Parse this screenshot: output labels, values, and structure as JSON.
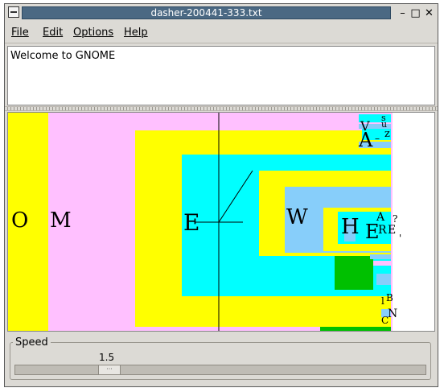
{
  "window": {
    "title": "dasher-200441-333.txt"
  },
  "window_controls": {
    "minimize": "–",
    "maximize": "□",
    "close": "✕"
  },
  "menu": [
    "File",
    "Edit",
    "Options",
    "Help"
  ],
  "editor": {
    "text": "Welcome to GNOME"
  },
  "dasher": {
    "letters": [
      "O",
      "M",
      "E",
      "W",
      "H",
      "E",
      "V",
      "A",
      "–",
      "s",
      "u",
      "z",
      "A",
      "R",
      "E",
      "?",
      "l",
      "B",
      "N",
      "C",
      "'"
    ]
  },
  "speed": {
    "label": "Speed",
    "value": "1.5",
    "grip": "···"
  },
  "colors": {
    "titlebar": "#4b6983",
    "pink": "#ffc0ff",
    "yellow": "#ffff00",
    "cyan": "#00ffff",
    "lightblue": "#87cefa",
    "green": "#00c000"
  }
}
